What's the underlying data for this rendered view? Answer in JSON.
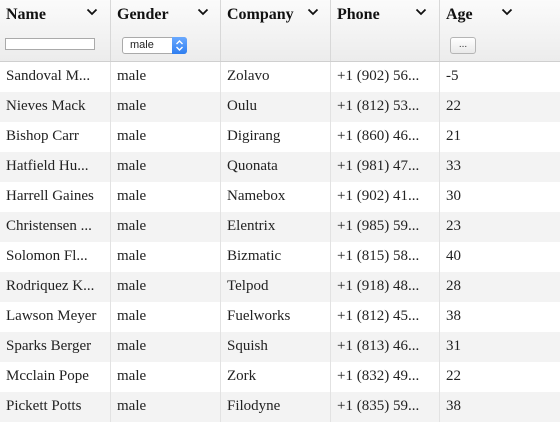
{
  "columns": [
    {
      "label": "Name"
    },
    {
      "label": "Gender"
    },
    {
      "label": "Company"
    },
    {
      "label": "Phone"
    },
    {
      "label": "Age"
    }
  ],
  "filters": {
    "name_value": "",
    "gender_value": "male",
    "age_button_label": "..."
  },
  "rows": [
    {
      "name": "Sandoval M...",
      "gender": "male",
      "company": "Zolavo",
      "phone": "+1 (902) 56...",
      "age": "-5"
    },
    {
      "name": "Nieves Mack",
      "gender": "male",
      "company": "Oulu",
      "phone": "+1 (812) 53...",
      "age": "22"
    },
    {
      "name": "Bishop Carr",
      "gender": "male",
      "company": "Digirang",
      "phone": "+1 (860) 46...",
      "age": "21"
    },
    {
      "name": "Hatfield Hu...",
      "gender": "male",
      "company": "Quonata",
      "phone": "+1 (981) 47...",
      "age": "33"
    },
    {
      "name": "Harrell Gaines",
      "gender": "male",
      "company": "Namebox",
      "phone": "+1 (902) 41...",
      "age": "30"
    },
    {
      "name": "Christensen ...",
      "gender": "male",
      "company": "Elentrix",
      "phone": "+1 (985) 59...",
      "age": "23"
    },
    {
      "name": "Solomon Fl...",
      "gender": "male",
      "company": "Bizmatic",
      "phone": "+1 (815) 58...",
      "age": "40"
    },
    {
      "name": "Rodriquez K...",
      "gender": "male",
      "company": "Telpod",
      "phone": "+1 (918) 48...",
      "age": "28"
    },
    {
      "name": "Lawson Meyer",
      "gender": "male",
      "company": "Fuelworks",
      "phone": "+1 (812) 45...",
      "age": "38"
    },
    {
      "name": "Sparks Berger",
      "gender": "male",
      "company": "Squish",
      "phone": "+1 (813) 46...",
      "age": "31"
    },
    {
      "name": "Mcclain Pope",
      "gender": "male",
      "company": "Zork",
      "phone": "+1 (832) 49...",
      "age": "22"
    },
    {
      "name": "Pickett Potts",
      "gender": "male",
      "company": "Filodyne",
      "phone": "+1 (835) 59...",
      "age": "38"
    }
  ],
  "colors": {
    "header_bg": "#ececec",
    "row_alt": "#f3f3f3",
    "select_accent": "#2f7ef0"
  }
}
